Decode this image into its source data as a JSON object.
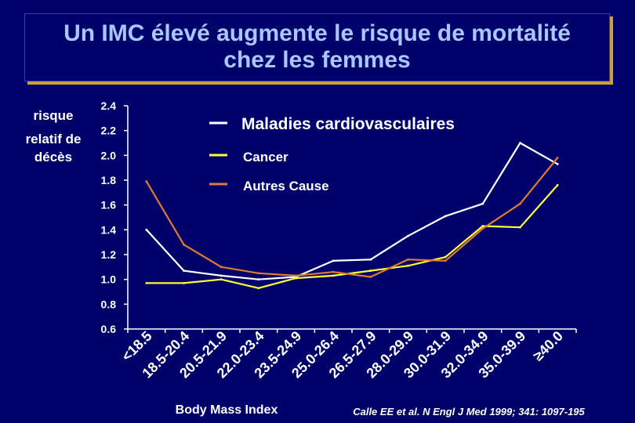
{
  "slide": {
    "title_line1": "Un IMC élevé augmente le risque de mortalité",
    "title_line2": "chez les femmes",
    "citation": "Calle EE et al. N Engl J Med 1999; 341: 1097-195"
  },
  "colors": {
    "background": "#00006b",
    "title_text": "#a9c7ff",
    "axis": "#ffffff",
    "cardio": "#ffffff",
    "cancer": "#ffff33",
    "all_cause": "#e07a30",
    "title_shadow": "#c9a03a"
  },
  "chart_data": {
    "type": "line",
    "title": "",
    "xlabel": "Body Mass Index",
    "ylabel_lines": [
      "risque",
      "relatif de",
      "décès"
    ],
    "ylim": [
      0.6,
      2.4
    ],
    "yticks": [
      "0.6",
      "0.8",
      "1.0",
      "1.2",
      "1.4",
      "1.6",
      "1.8",
      "2.0",
      "2.2",
      "2.4"
    ],
    "categories": [
      "<18.5",
      "18.5-20.4",
      "20.5-21.9",
      "22.0-23.4",
      "23.5-24.9",
      "25.0-26.4",
      "26.5-27.9",
      "28.0-29.9",
      "30.0-31.9",
      "32.0-34.9",
      "35.0-39.9",
      "≥40.0"
    ],
    "series": [
      {
        "name": "Maladies cardiovasculaires",
        "color": "#ffffff",
        "values": [
          1.4,
          1.07,
          1.03,
          1.0,
          1.02,
          1.15,
          1.16,
          1.35,
          1.51,
          1.61,
          2.1,
          1.93
        ]
      },
      {
        "name": "Cancer",
        "color": "#ffff33",
        "values": [
          0.97,
          0.97,
          1.0,
          0.93,
          1.01,
          1.03,
          1.07,
          1.11,
          1.18,
          1.43,
          1.42,
          1.76
        ]
      },
      {
        "name": "Autres Cause",
        "color": "#e07a30",
        "values": [
          1.79,
          1.28,
          1.1,
          1.05,
          1.03,
          1.06,
          1.02,
          1.16,
          1.15,
          1.41,
          1.61,
          1.98
        ]
      }
    ]
  }
}
